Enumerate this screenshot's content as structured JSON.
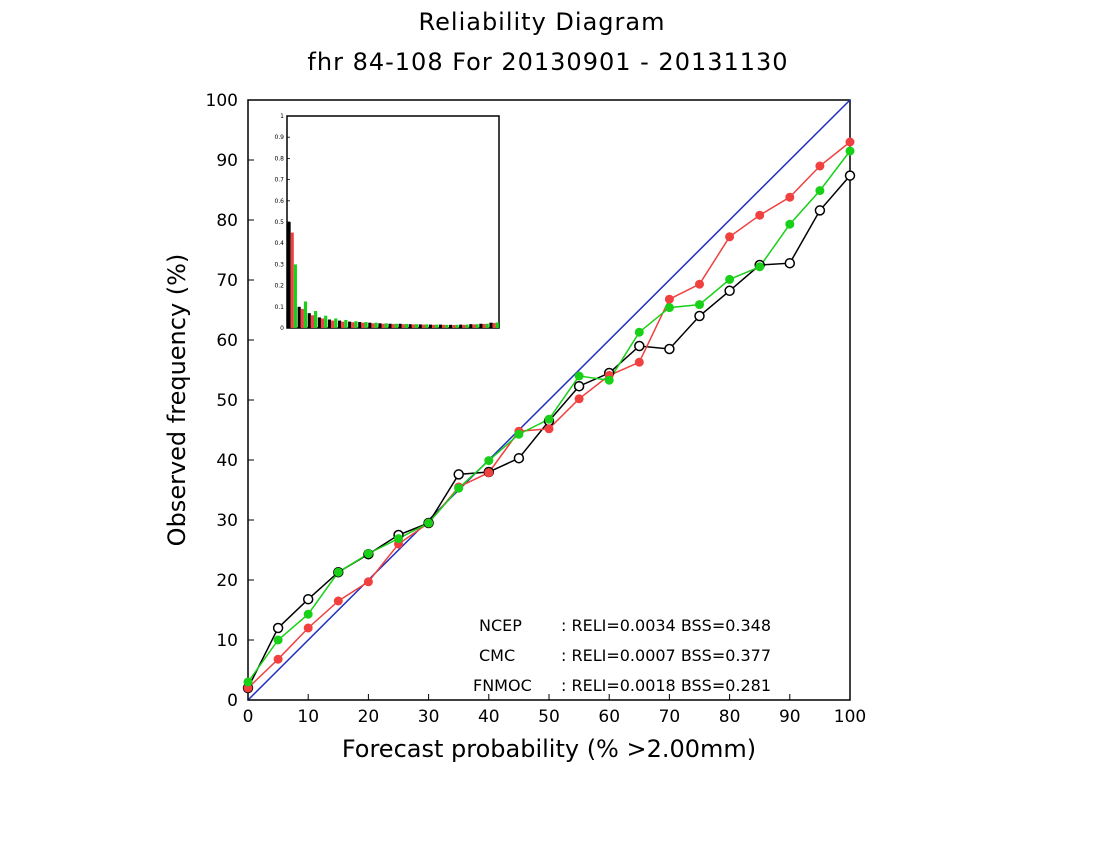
{
  "colors": {
    "ncep": "#000000",
    "cmc": "#f04040",
    "fnmoc": "#18d018",
    "diagonal": "#2030c0",
    "axis": "#000000",
    "background": "#ffffff"
  },
  "chart_data": {
    "type": "line",
    "title": "Reliability Diagram",
    "subtitle": "fhr 84-108 For 20130901 - 20131130",
    "xlabel": "Forecast probability (% >2.00mm)",
    "ylabel": "Observed frequency (%)",
    "xlim": [
      0,
      100
    ],
    "ylim": [
      0,
      100
    ],
    "xticks": [
      "0",
      "10",
      "20",
      "30",
      "40",
      "50",
      "60",
      "70",
      "80",
      "90",
      "100"
    ],
    "yticks": [
      "0",
      "10",
      "20",
      "30",
      "40",
      "50",
      "60",
      "70",
      "80",
      "90",
      "100"
    ],
    "grid": false,
    "reference_line": "perfect reliability diagonal",
    "series": [
      {
        "name": "NCEP",
        "marker": "open-circle",
        "legend_text": ": RELI=0.0034 BSS=0.348",
        "x": [
          0,
          5,
          10,
          15,
          20,
          25,
          30,
          35,
          40,
          45,
          50,
          55,
          60,
          65,
          70,
          75,
          80,
          85,
          90,
          95,
          100
        ],
        "y": [
          2,
          12,
          16.8,
          21.3,
          24.3,
          27.5,
          29.5,
          37.6,
          38,
          40.3,
          46.5,
          52.3,
          54.5,
          59,
          58.5,
          64,
          68.2,
          72.5,
          72.8,
          81.6,
          87.4
        ]
      },
      {
        "name": "CMC",
        "marker": "filled-circle",
        "legend_text": ": RELI=0.0007 BSS=0.377",
        "x": [
          0,
          5,
          10,
          15,
          20,
          25,
          30,
          35,
          40,
          45,
          50,
          55,
          60,
          65,
          70,
          75,
          80,
          85,
          90,
          95,
          100
        ],
        "y": [
          2,
          6.8,
          12,
          16.5,
          19.7,
          26,
          29.5,
          35.5,
          37.9,
          44.8,
          45.2,
          50.2,
          54.1,
          56.3,
          66.8,
          69.3,
          77.2,
          80.8,
          83.8,
          89,
          93
        ]
      },
      {
        "name": "FNMOC",
        "marker": "filled-circle",
        "legend_text": ": RELI=0.0018 BSS=0.281",
        "x": [
          0,
          5,
          10,
          15,
          20,
          25,
          30,
          35,
          40,
          45,
          50,
          55,
          60,
          65,
          70,
          75,
          80,
          85,
          90,
          95,
          100
        ],
        "y": [
          3,
          10,
          14.3,
          21.3,
          24.4,
          26.9,
          29.5,
          35.3,
          39.9,
          44.3,
          46.8,
          54,
          53.3,
          61.3,
          65.4,
          65.9,
          70.1,
          72.2,
          79.3,
          84.9,
          91.5
        ]
      }
    ],
    "inset": {
      "type": "bar",
      "description_ylim": [
        0,
        1
      ],
      "yticks": [
        "0",
        "0.1",
        "0.2",
        "0.3",
        "0.4",
        "0.5",
        "0.6",
        "0.7",
        "0.8",
        "0.9",
        "1"
      ],
      "series": [
        {
          "name": "NCEP",
          "values": [
            0.5,
            0.1,
            0.07,
            0.05,
            0.04,
            0.035,
            0.03,
            0.028,
            0.025,
            0.022,
            0.02,
            0.02,
            0.018,
            0.017,
            0.016,
            0.016,
            0.015,
            0.016,
            0.018,
            0.02,
            0.025
          ]
        },
        {
          "name": "CMC",
          "values": [
            0.45,
            0.09,
            0.06,
            0.045,
            0.035,
            0.03,
            0.027,
            0.025,
            0.022,
            0.02,
            0.019,
            0.018,
            0.017,
            0.016,
            0.015,
            0.015,
            0.014,
            0.015,
            0.017,
            0.019,
            0.024
          ]
        },
        {
          "name": "FNMOC",
          "values": [
            0.3,
            0.125,
            0.08,
            0.058,
            0.045,
            0.038,
            0.032,
            0.028,
            0.025,
            0.022,
            0.02,
            0.019,
            0.018,
            0.017,
            0.016,
            0.015,
            0.015,
            0.016,
            0.018,
            0.02,
            0.026
          ]
        }
      ]
    }
  }
}
